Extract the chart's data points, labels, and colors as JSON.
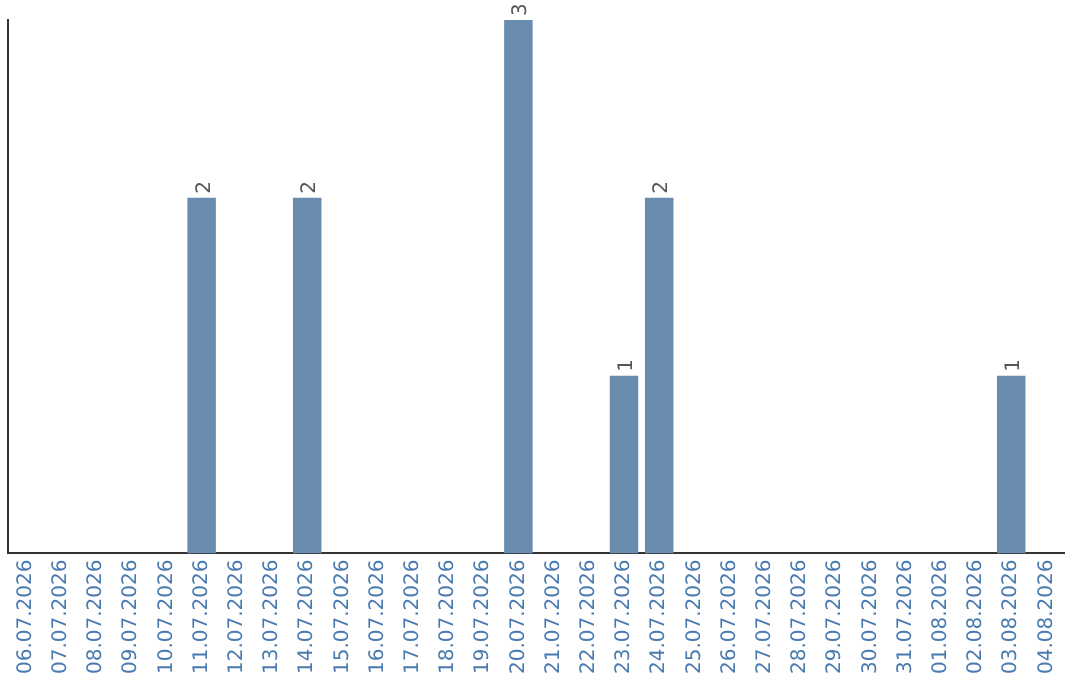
{
  "chart_data": {
    "type": "bar",
    "categories": [
      "06.07.2026",
      "07.07.2026",
      "08.07.2026",
      "09.07.2026",
      "10.07.2026",
      "11.07.2026",
      "12.07.2026",
      "13.07.2026",
      "14.07.2026",
      "15.07.2026",
      "16.07.2026",
      "17.07.2026",
      "18.07.2026",
      "19.07.2026",
      "20.07.2026",
      "21.07.2026",
      "22.07.2026",
      "23.07.2026",
      "24.07.2026",
      "25.07.2026",
      "26.07.2026",
      "27.07.2026",
      "28.07.2026",
      "29.07.2026",
      "30.07.2026",
      "31.07.2026",
      "01.08.2026",
      "02.08.2026",
      "03.08.2026",
      "04.08.2026"
    ],
    "values": [
      0,
      0,
      0,
      0,
      0,
      2,
      0,
      0,
      2,
      0,
      0,
      0,
      0,
      0,
      3,
      0,
      0,
      1,
      2,
      0,
      0,
      0,
      0,
      0,
      0,
      0,
      0,
      0,
      1,
      0
    ],
    "value_labels": [
      null,
      null,
      null,
      null,
      null,
      "2",
      null,
      null,
      "2",
      null,
      null,
      null,
      null,
      null,
      "3",
      null,
      null,
      "1",
      "2",
      null,
      null,
      null,
      null,
      null,
      null,
      null,
      null,
      null,
      "1",
      null
    ],
    "color": "#6a8caf",
    "grid": false,
    "legend": false,
    "tick_labels": "x"
  }
}
